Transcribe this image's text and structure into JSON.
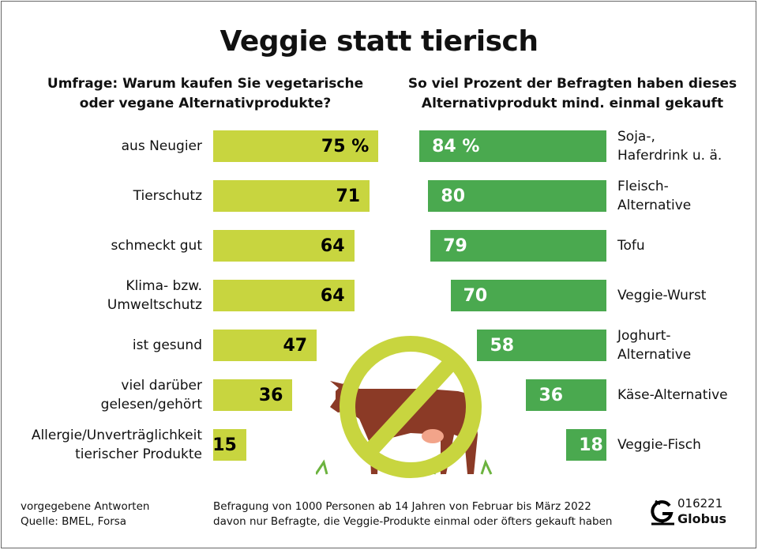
{
  "title": "Veggie statt tierisch",
  "chart_data": [
    {
      "type": "bar",
      "orientation": "horizontal",
      "title": "Umfrage: Warum kaufen Sie vegetarische oder vegane Alternativprodukte?",
      "title_lines": [
        "Umfrage: Warum kaufen Sie vegetarische",
        "oder vegane Alternativprodukte?"
      ],
      "unit": "%",
      "color": "#c8d53f",
      "categories": [
        [
          "aus Neugier"
        ],
        [
          "Tierschutz"
        ],
        [
          "schmeckt gut"
        ],
        [
          "Klima- bzw.",
          "Umweltschutz"
        ],
        [
          "ist gesund"
        ],
        [
          "viel darüber",
          "gelesen/gehört"
        ],
        [
          "Allergie/Unverträglichkeit",
          "tierischer Produkte"
        ]
      ],
      "values": [
        75,
        71,
        64,
        64,
        47,
        36,
        15
      ],
      "value_labels": [
        "75 %",
        "71",
        "64",
        "64",
        "47",
        "36",
        "15"
      ]
    },
    {
      "type": "bar",
      "orientation": "horizontal",
      "title": "So viel Prozent der Befragten haben dieses Alternativprodukt mind. einmal gekauft",
      "title_lines": [
        "So viel Prozent der Befragten haben dieses",
        "Alternativprodukt mind. einmal gekauft"
      ],
      "unit": "%",
      "color": "#4aa94f",
      "categories": [
        [
          "Soja-,",
          "Haferdrink u. ä."
        ],
        [
          "Fleisch-",
          "Alternative"
        ],
        [
          "Tofu"
        ],
        [
          "Veggie-Wurst"
        ],
        [
          "Joghurt-",
          "Alternative"
        ],
        [
          "Käse-Alternative"
        ],
        [
          "Veggie-Fisch"
        ]
      ],
      "values": [
        84,
        80,
        79,
        70,
        58,
        36,
        18
      ],
      "value_labels": [
        "84 %",
        "80",
        "79",
        "70",
        "58",
        "36",
        "18"
      ]
    }
  ],
  "footer": {
    "left": [
      "vorgegebene Antworten",
      "Quelle: BMEL, Forsa"
    ],
    "center": [
      "Befragung von 1000 Personen ab 14 Jahren von Februar bis März 2022",
      "davon nur Befragte, die Veggie-Produkte einmal oder öfters gekauft haben"
    ],
    "graphic_number": "016221",
    "brand": "Globus"
  }
}
